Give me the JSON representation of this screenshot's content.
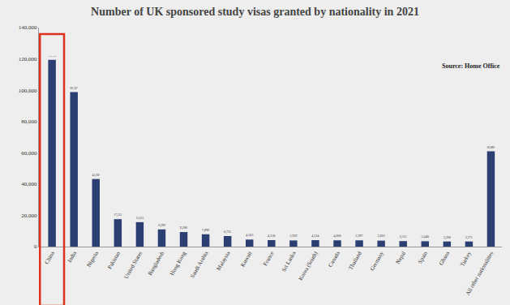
{
  "chart_data": {
    "type": "bar",
    "title": "Number of UK sponsored study visas granted by nationality in 2021",
    "annotation": "Source: Home Office",
    "categories": [
      "China",
      "India",
      "Nigeria",
      "Pakistan",
      "United States",
      "Bangladesh",
      "Hong Kong",
      "Saudi Arabia",
      "Malaysia",
      "Kuwait",
      "France",
      "Sri Lanka",
      "Korea (South)",
      "Canada",
      "Thailand",
      "Germany",
      "Nepal",
      "Spain",
      "Ghana",
      "Turkey",
      "All other nationalities"
    ],
    "values": [
      119334,
      98747,
      43200,
      17533,
      15623,
      10999,
      9286,
      7899,
      6731,
      4503,
      4158,
      3939,
      4124,
      4008,
      3997,
      3816,
      3515,
      3440,
      3268,
      3271,
      60880
    ],
    "value_labels": [
      "119,334",
      "98,747",
      "43,200",
      "17,533",
      "15,623",
      "10,999",
      "9,286",
      "7,899",
      "6,731",
      "4,503",
      "4,158",
      "3,939",
      "4,124",
      "4,008",
      "3,997",
      "3,816",
      "3,515",
      "3,440",
      "3,268",
      "3,271",
      "60,880"
    ],
    "color": "#2b3f73",
    "data_labels": true,
    "grid": false,
    "ylim": [
      0,
      140000
    ],
    "yticks": [
      0,
      {
        "value": 20000,
        "label": "20,000"
      },
      {
        "value": 40000,
        "label": "40,000"
      },
      {
        "value": 60000,
        "label": "60,000"
      },
      {
        "value": 80000,
        "label": "80,000"
      },
      {
        "value": 100000,
        "label": "100,000"
      },
      {
        "value": 120000,
        "label": "120,000"
      },
      {
        "value": 140000,
        "label": "140,000"
      }
    ]
  }
}
